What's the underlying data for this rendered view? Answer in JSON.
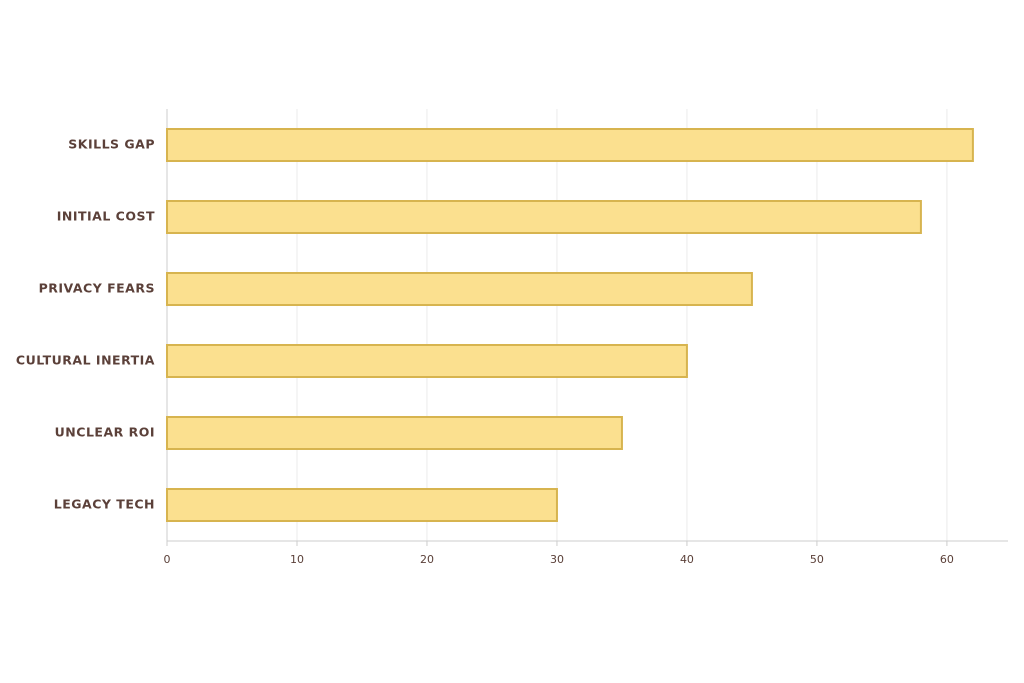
{
  "chart_data": {
    "type": "bar",
    "categories": [
      "SKILLS GAP",
      "INITIAL COST",
      "PRIVACY FEARS",
      "CULTURAL INERTIA",
      "UNCLEAR ROI",
      "LEGACY TECH"
    ],
    "values": [
      62,
      58,
      45,
      40,
      35,
      30
    ],
    "color": "#fbe08f",
    "edgecolor": "#d7b44f",
    "xlim": [
      0,
      64.7
    ],
    "xticks": [
      0,
      10,
      20,
      30,
      40,
      50,
      60
    ],
    "grid": true
  }
}
